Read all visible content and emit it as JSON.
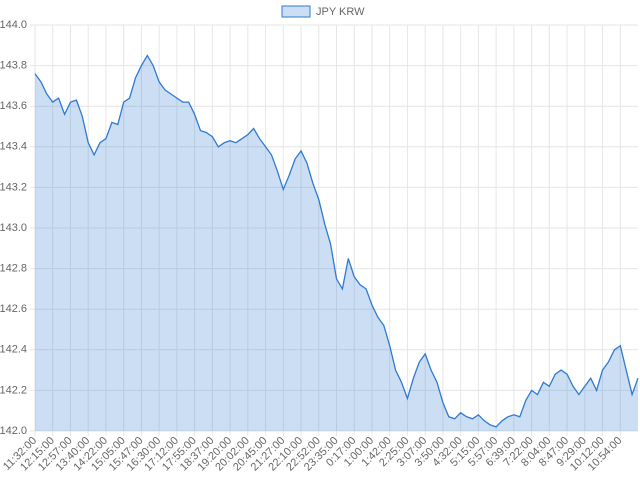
{
  "chart_data": {
    "type": "area",
    "series": [
      {
        "name": "JPY KRW",
        "color": "#2f7ad0",
        "values": [
          143.76,
          143.72,
          143.66,
          143.62,
          143.64,
          143.56,
          143.62,
          143.63,
          143.55,
          143.42,
          143.36,
          143.42,
          143.44,
          143.52,
          143.51,
          143.62,
          143.64,
          143.74,
          143.8,
          143.85,
          143.8,
          143.72,
          143.68,
          143.66,
          143.64,
          143.62,
          143.62,
          143.56,
          143.48,
          143.47,
          143.45,
          143.4,
          143.42,
          143.43,
          143.42,
          143.44,
          143.46,
          143.49,
          143.44,
          143.4,
          143.36,
          143.28,
          143.19,
          143.26,
          143.34,
          143.38,
          143.32,
          143.22,
          143.14,
          143.02,
          142.92,
          142.75,
          142.7,
          142.85,
          142.76,
          142.72,
          142.7,
          142.62,
          142.56,
          142.52,
          142.42,
          142.3,
          142.24,
          142.16,
          142.26,
          142.34,
          142.38,
          142.3,
          142.24,
          142.14,
          142.07,
          142.06,
          142.09,
          142.07,
          142.06,
          142.08,
          142.05,
          142.03,
          142.02,
          142.05,
          142.07,
          142.08,
          142.07,
          142.15,
          142.2,
          142.18,
          142.24,
          142.22,
          142.28,
          142.3,
          142.28,
          142.22,
          142.18,
          142.22,
          142.26,
          142.2,
          142.3,
          142.34,
          142.4,
          142.42,
          142.3,
          142.18,
          142.26
        ]
      }
    ],
    "categories": [
      "11:32:00",
      null,
      null,
      "12:15:00",
      null,
      null,
      "12:57:00",
      null,
      null,
      "13:40:00",
      null,
      null,
      "14:22:00",
      null,
      null,
      "15:05:00",
      null,
      null,
      "15:47:00",
      null,
      null,
      "16:30:00",
      null,
      null,
      "17:12:00",
      null,
      null,
      "17:55:00",
      null,
      null,
      "18:37:00",
      null,
      null,
      "19:20:00",
      null,
      null,
      "20:02:00",
      null,
      null,
      "20:45:00",
      null,
      null,
      "21:27:00",
      null,
      null,
      "22:10:00",
      null,
      null,
      "22:52:00",
      null,
      null,
      "23:35:00",
      null,
      null,
      "0:17:00",
      null,
      null,
      "1:00:00",
      null,
      null,
      "1:42:00",
      null,
      null,
      "2:25:00",
      null,
      null,
      "3:07:00",
      null,
      null,
      "3:50:00",
      null,
      null,
      "4:32:00",
      null,
      null,
      "5:15:00",
      null,
      null,
      "5:57:00",
      null,
      null,
      "6:39:00",
      null,
      null,
      "7:22:00",
      null,
      null,
      "8:04:00",
      null,
      null,
      "8:47:00",
      null,
      null,
      "9:29:00",
      null,
      null,
      "10:12:00",
      null,
      null,
      "10:54:00",
      null,
      null,
      null
    ],
    "ylim": [
      142,
      144
    ],
    "yticks": [
      {
        "value": 142,
        "label": "142.0"
      },
      {
        "value": 142.2,
        "label": "142.2"
      },
      {
        "value": 142.4,
        "label": "142.4"
      },
      {
        "value": 142.6,
        "label": "142.6"
      },
      {
        "value": 142.8,
        "label": "142.8"
      },
      {
        "value": 143,
        "label": "143.0"
      },
      {
        "value": 143.2,
        "label": "143.2"
      },
      {
        "value": 143.4,
        "label": "143.4"
      },
      {
        "value": 143.6,
        "label": "143.6"
      },
      {
        "value": 143.8,
        "label": "143.8"
      },
      {
        "value": 144,
        "label": "144.0"
      }
    ],
    "grid": true,
    "legend": "top"
  }
}
